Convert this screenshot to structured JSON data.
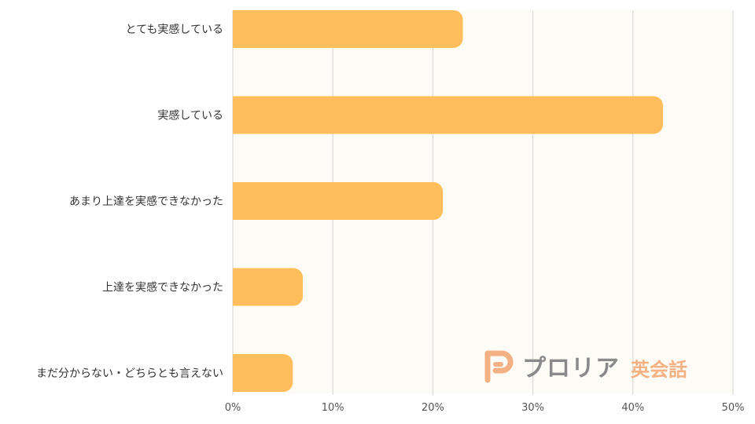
{
  "chart_data": {
    "type": "bar",
    "orientation": "horizontal",
    "categories": [
      "とても実感している",
      "実感している",
      "あまり上達を実感できなかった",
      "上達を実感できなかった",
      "まだ分からない・どちらとも言えない"
    ],
    "values": [
      23,
      43,
      21,
      7,
      6
    ],
    "xlim": [
      0,
      50
    ],
    "x_ticks": [
      0,
      10,
      20,
      30,
      40,
      50
    ],
    "tick_suffix": "%",
    "grid": true,
    "colors": {
      "bar": "#ffbe5b",
      "grid": "#d4d4d4"
    }
  },
  "logo": {
    "text": "プロリア",
    "sub": "英会話",
    "colors": {
      "mark": "#f4b183",
      "text": "#8a8a8a"
    }
  }
}
